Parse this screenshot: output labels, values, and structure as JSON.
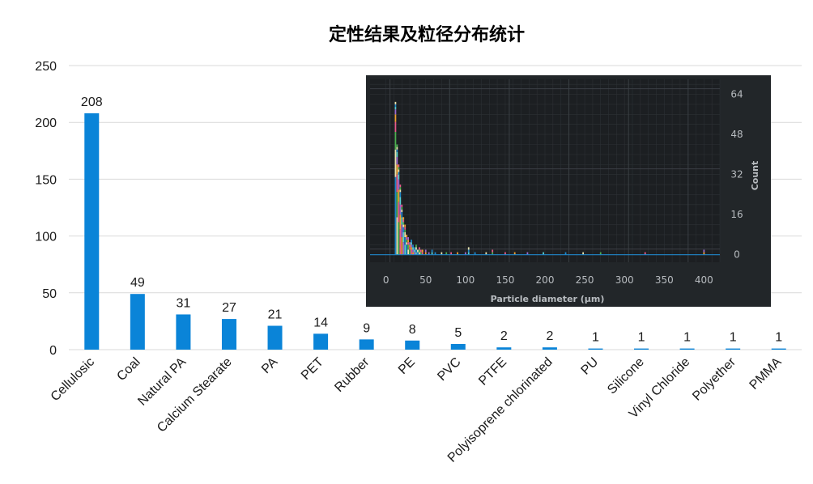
{
  "colors": {
    "bar": "#0a84d8",
    "gridline": "#d9d9d9",
    "inset_bg": "#222629",
    "inset_plot": "#1c1f22",
    "inset_grid": "#3a3f44",
    "inset_text": "#b8bcc0"
  },
  "chart_data": [
    {
      "type": "bar",
      "title": "定性结果及粒径分布统计",
      "xlabel": "",
      "ylabel": "",
      "ylim": [
        0,
        250
      ],
      "yticks": [
        0,
        50,
        100,
        150,
        200,
        250
      ],
      "categories": [
        "Cellulosic",
        "Coal",
        "Natural PA",
        "Calcium Stearate",
        "PA",
        "PET",
        "Rubber",
        "PE",
        "PVC",
        "PTFE",
        "Polyisoprene chlorinated",
        "PU",
        "Silicone",
        "Vinyl Chloride",
        "Polyether",
        "PMMA"
      ],
      "values": [
        208,
        49,
        31,
        27,
        21,
        14,
        9,
        8,
        5,
        2,
        2,
        1,
        1,
        1,
        1,
        1
      ],
      "data_labels": true,
      "grid": true,
      "legend": "none"
    },
    {
      "type": "bar",
      "subtype": "histogram",
      "title": "",
      "xlabel": "Particle diameter (µm)",
      "ylabel": "Count",
      "xlim": [
        -20,
        420
      ],
      "ylim": [
        -3,
        70
      ],
      "xticks": [
        0,
        50,
        100,
        150,
        200,
        250,
        300,
        350,
        400
      ],
      "yticks": [
        0,
        16,
        32,
        48,
        64
      ],
      "y_axis_side": "right",
      "grid": true,
      "stacked": true,
      "bin_width": 2,
      "series_colors": [
        "#1f86c8",
        "#e8e4b0",
        "#4caf50",
        "#e85a8a",
        "#f0a030",
        "#9a6ad0",
        "#5ad0d0"
      ],
      "bins": [
        {
          "x": 12,
          "total": 61
        },
        {
          "x": 14,
          "total": 44
        },
        {
          "x": 16,
          "total": 36
        },
        {
          "x": 18,
          "total": 28
        },
        {
          "x": 20,
          "total": 20
        },
        {
          "x": 22,
          "total": 15
        },
        {
          "x": 24,
          "total": 12
        },
        {
          "x": 26,
          "total": 8
        },
        {
          "x": 28,
          "total": 7
        },
        {
          "x": 30,
          "total": 5
        },
        {
          "x": 32,
          "total": 6
        },
        {
          "x": 34,
          "total": 4
        },
        {
          "x": 36,
          "total": 3
        },
        {
          "x": 38,
          "total": 4
        },
        {
          "x": 40,
          "total": 2
        },
        {
          "x": 42,
          "total": 3
        },
        {
          "x": 44,
          "total": 2
        },
        {
          "x": 46,
          "total": 2
        },
        {
          "x": 50,
          "total": 2
        },
        {
          "x": 54,
          "total": 1
        },
        {
          "x": 58,
          "total": 2
        },
        {
          "x": 62,
          "total": 1
        },
        {
          "x": 70,
          "total": 1
        },
        {
          "x": 76,
          "total": 1
        },
        {
          "x": 82,
          "total": 1
        },
        {
          "x": 90,
          "total": 1
        },
        {
          "x": 100,
          "total": 1
        },
        {
          "x": 104,
          "total": 3
        },
        {
          "x": 112,
          "total": 1
        },
        {
          "x": 126,
          "total": 1
        },
        {
          "x": 134,
          "total": 2
        },
        {
          "x": 150,
          "total": 1
        },
        {
          "x": 162,
          "total": 1
        },
        {
          "x": 178,
          "total": 1
        },
        {
          "x": 198,
          "total": 1
        },
        {
          "x": 226,
          "total": 1
        },
        {
          "x": 248,
          "total": 1
        },
        {
          "x": 270,
          "total": 1
        },
        {
          "x": 326,
          "total": 1
        },
        {
          "x": 400,
          "total": 2
        }
      ]
    }
  ]
}
